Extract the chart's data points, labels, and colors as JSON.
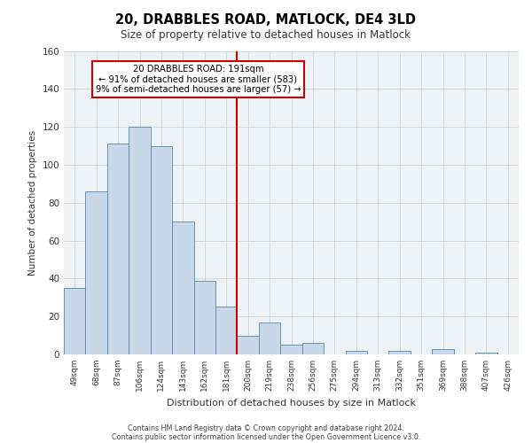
{
  "title": "20, DRABBLES ROAD, MATLOCK, DE4 3LD",
  "subtitle": "Size of property relative to detached houses in Matlock",
  "xlabel": "Distribution of detached houses by size in Matlock",
  "ylabel": "Number of detached properties",
  "bar_labels": [
    "49sqm",
    "68sqm",
    "87sqm",
    "106sqm",
    "124sqm",
    "143sqm",
    "162sqm",
    "181sqm",
    "200sqm",
    "219sqm",
    "238sqm",
    "256sqm",
    "275sqm",
    "294sqm",
    "313sqm",
    "332sqm",
    "351sqm",
    "369sqm",
    "388sqm",
    "407sqm",
    "426sqm"
  ],
  "bar_values": [
    35,
    86,
    111,
    120,
    110,
    70,
    39,
    25,
    10,
    17,
    5,
    6,
    0,
    2,
    0,
    2,
    0,
    3,
    0,
    1,
    0
  ],
  "bar_color": "#c8d8e8",
  "bar_edge_color": "#5588aa",
  "vline_x": 7.5,
  "vline_color": "#cc0000",
  "annotation_title": "20 DRABBLES ROAD: 191sqm",
  "annotation_line1": "← 91% of detached houses are smaller (583)",
  "annotation_line2": "9% of semi-detached houses are larger (57) →",
  "annotation_box_color": "#cc0000",
  "annotation_bg": "#ffffff",
  "ylim": [
    0,
    160
  ],
  "yticks": [
    0,
    20,
    40,
    60,
    80,
    100,
    120,
    140,
    160
  ],
  "grid_color": "#cccccc",
  "bg_color": "#edf2f7",
  "footer1": "Contains HM Land Registry data © Crown copyright and database right 2024.",
  "footer2": "Contains public sector information licensed under the Open Government Licence v3.0."
}
